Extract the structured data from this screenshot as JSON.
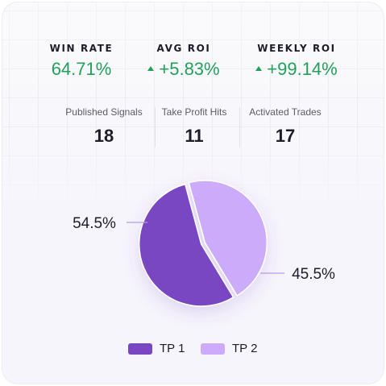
{
  "kpis": [
    {
      "label": "WIN RATE",
      "value": "64.71%",
      "trend_icon": ""
    },
    {
      "label": "AVG ROI",
      "value": "+5.83%",
      "trend_icon": "up-triangle-icon"
    },
    {
      "label": "WEEKLY ROI",
      "value": "+99.14%",
      "trend_icon": "up-triangle-icon"
    }
  ],
  "stats": [
    {
      "label": "Published Signals",
      "value": "18"
    },
    {
      "label": "Take Profit Hits",
      "value": "11"
    },
    {
      "label": "Activated Trades",
      "value": "17"
    }
  ],
  "colors": {
    "positive": "#22a05a",
    "tp1": "#7a47c2",
    "tp2": "#ccabfb",
    "leader": "#b89ae6"
  },
  "chart_data": {
    "type": "pie",
    "labels": [
      "TP 1",
      "TP 2"
    ],
    "values": [
      54.5,
      45.5
    ],
    "data_labels": [
      "54.5%",
      "45.5%"
    ],
    "colors": [
      "#7a47c2",
      "#ccabfb"
    ],
    "legend_position": "bottom",
    "title": ""
  }
}
